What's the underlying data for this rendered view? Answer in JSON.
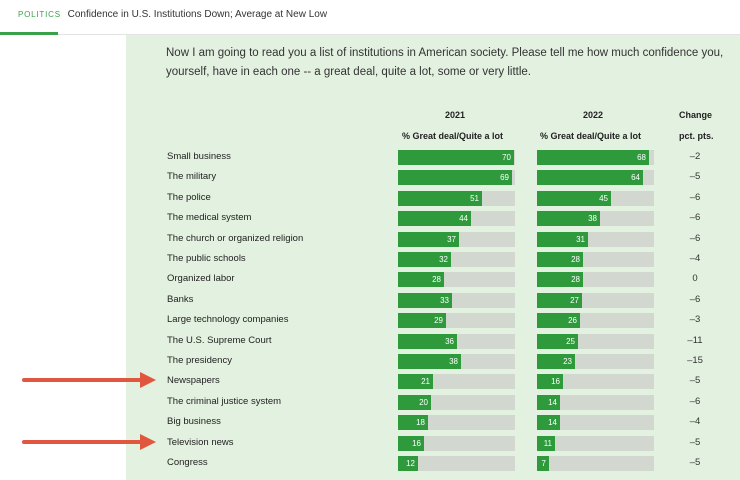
{
  "header": {
    "section": "POLITICS",
    "headline": "Confidence in U.S. Institutions Down; Average at New Low"
  },
  "intro": "Now I am going to read you a list of institutions in American society. Please tell me how much confidence you, yourself, have in each one -- a great deal, quite a lot, some or very little.",
  "columns": {
    "year1": "2021",
    "year2": "2022",
    "sub1": "% Great deal/Quite a lot",
    "sub2": "% Great deal/Quite a lot",
    "change": "Change",
    "change_sub": "pct. pts."
  },
  "colors": {
    "bar": "#2e9a3c",
    "track": "#d2d8d0",
    "panel": "#e3f1e0",
    "accent": "#3aa04a",
    "arrow": "#e0563f"
  },
  "chart_data": {
    "type": "bar",
    "categories": [
      "Small business",
      "The military",
      "The police",
      "The medical system",
      "The church or organized religion",
      "The public schools",
      "Organized labor",
      "Banks",
      "Large technology companies",
      "The U.S. Supreme Court",
      "The presidency",
      "Newspapers",
      "The criminal justice system",
      "Big business",
      "Television news",
      "Congress"
    ],
    "series": [
      {
        "name": "2021",
        "values": [
          70,
          69,
          51,
          44,
          37,
          32,
          28,
          33,
          29,
          36,
          38,
          21,
          20,
          18,
          16,
          12
        ]
      },
      {
        "name": "2022",
        "values": [
          68,
          64,
          45,
          38,
          31,
          28,
          28,
          27,
          26,
          25,
          23,
          16,
          14,
          14,
          11,
          7
        ]
      }
    ],
    "change": [
      "–2",
      "–5",
      "–6",
      "–6",
      "–6",
      "–4",
      "0",
      "–6",
      "–3",
      "–11",
      "–15",
      "–5",
      "–6",
      "–4",
      "–5",
      "–5"
    ],
    "xlim": [
      0,
      100
    ],
    "highlighted": [
      "Newspapers",
      "Television news"
    ]
  }
}
